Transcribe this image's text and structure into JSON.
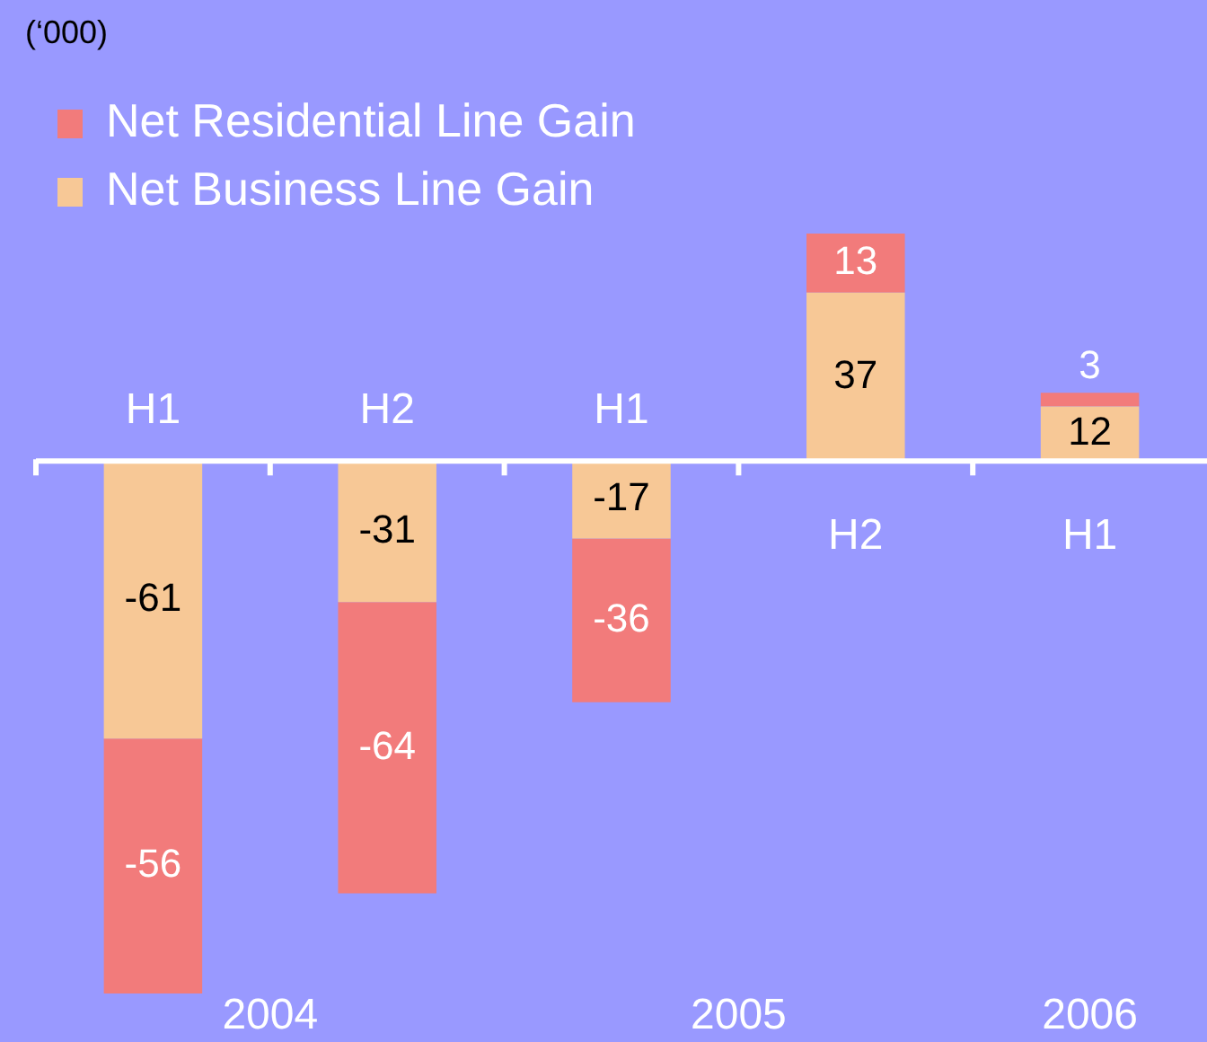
{
  "chart_data": {
    "type": "bar",
    "stacked": true,
    "data_labels": true,
    "legend": "top left",
    "grid": false,
    "categories": [
      "H1",
      "H2",
      "H1",
      "H2",
      "H1"
    ],
    "series": [
      {
        "name": "Net Business Line Gain",
        "color": "#f7c896",
        "values": [
          -61,
          -31,
          -17,
          37,
          12
        ]
      },
      {
        "name": "Net Residential Line Gain",
        "color": "#f27b7b",
        "values": [
          -56,
          -64,
          -36,
          13,
          3
        ]
      }
    ],
    "annotations": [
      "(‘000)",
      "2004",
      "2005",
      "2006"
    ]
  }
}
